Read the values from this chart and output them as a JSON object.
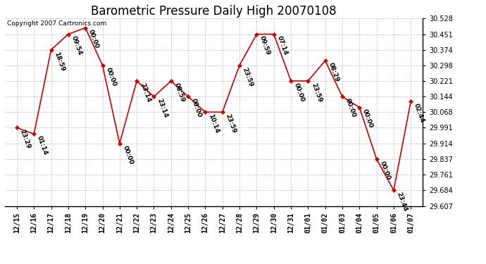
{
  "title": "Barometric Pressure Daily High 20070108",
  "copyright": "Copyright 2007 Cartronics.com",
  "background_color": "#ffffff",
  "line_color": "#cc0000",
  "marker_color": "#cc0000",
  "grid_color": "#bbbbbb",
  "x_labels": [
    "12/15",
    "12/16",
    "12/17",
    "12/18",
    "12/19",
    "12/20",
    "12/21",
    "12/22",
    "12/23",
    "12/24",
    "12/25",
    "12/26",
    "12/27",
    "12/28",
    "12/29",
    "12/30",
    "12/31",
    "01/01",
    "01/02",
    "01/03",
    "01/04",
    "01/05",
    "01/06",
    "01/07"
  ],
  "y_values": [
    29.991,
    29.96,
    30.374,
    30.451,
    30.482,
    30.298,
    29.914,
    30.221,
    30.144,
    30.221,
    30.144,
    30.068,
    30.068,
    30.298,
    30.451,
    30.451,
    30.221,
    30.221,
    30.321,
    30.144,
    30.091,
    29.837,
    29.684,
    30.121
  ],
  "point_labels": [
    "23:29",
    "01:14",
    "18:59",
    "09:54",
    "00:00",
    "00:00",
    "00:00",
    "23:14",
    "23:14",
    "08:59",
    "00:00",
    "10:14",
    "23:59",
    "23:59",
    "09:59",
    "07:14",
    "00:00",
    "23:59",
    "08:29",
    "00:00",
    "00:00",
    "00:00",
    "23:44",
    "02:44"
  ],
  "ylim_min": 29.607,
  "ylim_max": 30.528,
  "yticks": [
    29.607,
    29.684,
    29.761,
    29.837,
    29.914,
    29.991,
    30.068,
    30.144,
    30.221,
    30.298,
    30.374,
    30.451,
    30.528
  ],
  "title_fontsize": 12,
  "label_fontsize": 6.5,
  "tick_fontsize": 7,
  "copyright_fontsize": 6.5
}
